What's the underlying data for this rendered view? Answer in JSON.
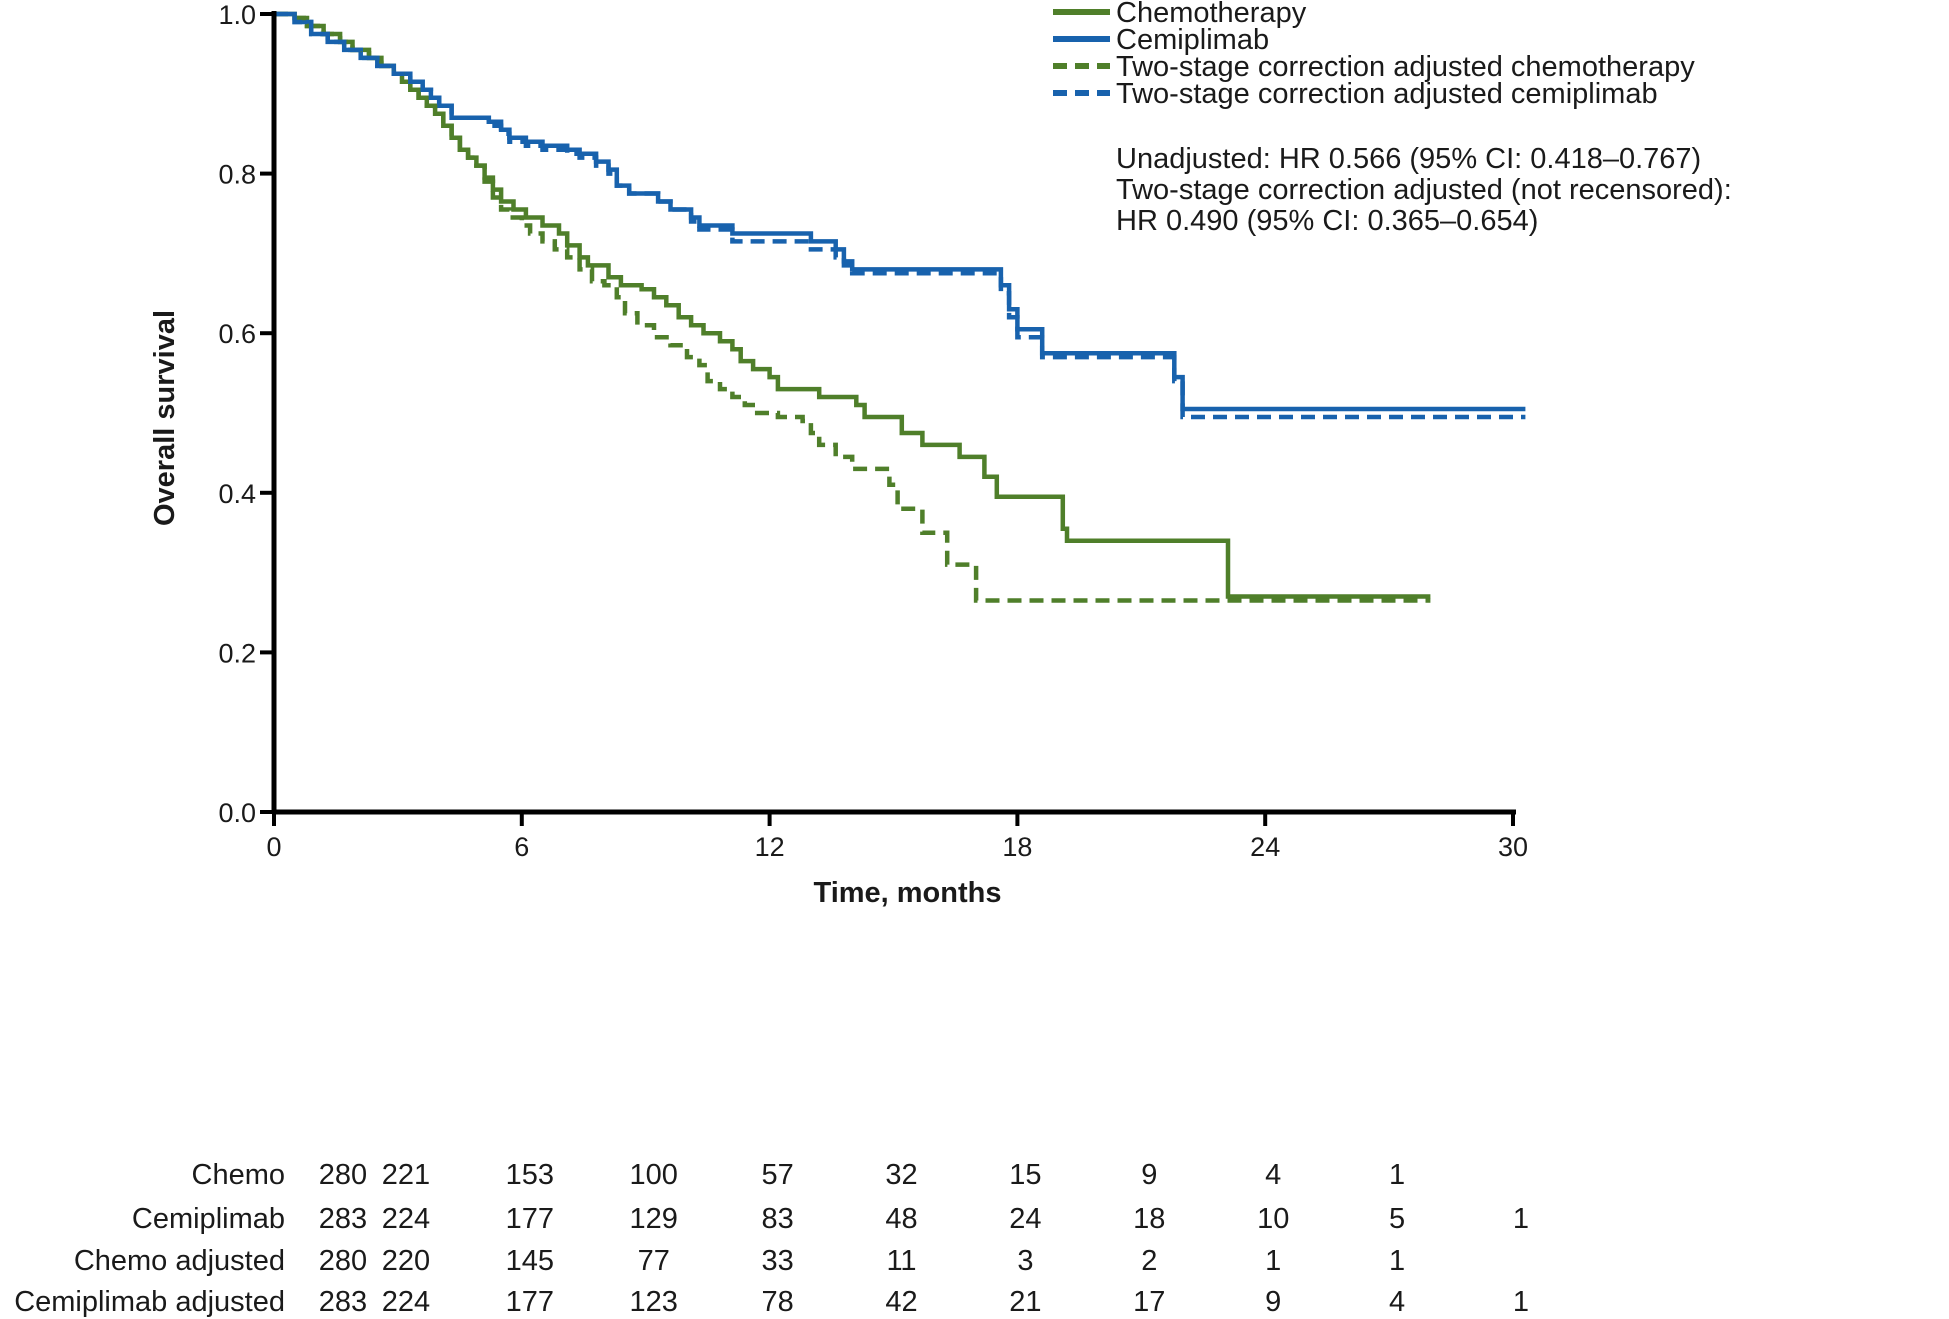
{
  "chart_data": {
    "type": "line",
    "subtype": "kaplan-meier",
    "title": "",
    "xlabel": "Time, months",
    "ylabel": "Overall survival",
    "xlim": [
      0,
      30
    ],
    "ylim": [
      0.0,
      1.0
    ],
    "x_ticks": [
      "0",
      "6",
      "12",
      "18",
      "24",
      "30"
    ],
    "y_ticks": [
      "0.0",
      "0.2",
      "0.4",
      "0.6",
      "0.8",
      "1.0"
    ],
    "legend": {
      "placement": "top-right",
      "entries": [
        {
          "label": "Chemotherapy",
          "color": "#4f7f2a",
          "style": "solid"
        },
        {
          "label": "Cemiplimab",
          "color": "#1862ad",
          "style": "solid"
        },
        {
          "label": "Two-stage correction adjusted chemotherapy",
          "color": "#4f7f2a",
          "style": "dashed"
        },
        {
          "label": "Two-stage correction adjusted cemiplimab",
          "color": "#1862ad",
          "style": "dashed"
        }
      ]
    },
    "annotations": [
      "Unadjusted: HR 0.566 (95% CI: 0.418–0.767)",
      "Two-stage correction adjusted (not recensored):",
      "HR 0.490 (95% CI: 0.365–0.654)"
    ],
    "series": [
      {
        "name": "Chemotherapy",
        "color": "#4f7f2a",
        "dash": false,
        "steps": [
          [
            0,
            1.0
          ],
          [
            0.5,
            0.995
          ],
          [
            0.8,
            0.985
          ],
          [
            1.2,
            0.975
          ],
          [
            1.6,
            0.965
          ],
          [
            1.9,
            0.955
          ],
          [
            2.3,
            0.945
          ],
          [
            2.6,
            0.935
          ],
          [
            2.9,
            0.925
          ],
          [
            3.1,
            0.915
          ],
          [
            3.3,
            0.905
          ],
          [
            3.5,
            0.895
          ],
          [
            3.7,
            0.885
          ],
          [
            3.9,
            0.875
          ],
          [
            4.1,
            0.86
          ],
          [
            4.3,
            0.845
          ],
          [
            4.5,
            0.83
          ],
          [
            4.7,
            0.82
          ],
          [
            4.9,
            0.81
          ],
          [
            5.1,
            0.795
          ],
          [
            5.3,
            0.78
          ],
          [
            5.5,
            0.765
          ],
          [
            5.8,
            0.755
          ],
          [
            6.1,
            0.745
          ],
          [
            6.5,
            0.735
          ],
          [
            6.9,
            0.725
          ],
          [
            7.1,
            0.71
          ],
          [
            7.4,
            0.695
          ],
          [
            7.6,
            0.685
          ],
          [
            8.1,
            0.67
          ],
          [
            8.4,
            0.66
          ],
          [
            8.9,
            0.655
          ],
          [
            9.2,
            0.645
          ],
          [
            9.5,
            0.635
          ],
          [
            9.8,
            0.62
          ],
          [
            10.1,
            0.61
          ],
          [
            10.4,
            0.6
          ],
          [
            10.8,
            0.59
          ],
          [
            11.1,
            0.58
          ],
          [
            11.3,
            0.565
          ],
          [
            11.6,
            0.555
          ],
          [
            12.0,
            0.545
          ],
          [
            12.2,
            0.53
          ],
          [
            13.2,
            0.52
          ],
          [
            14.1,
            0.51
          ],
          [
            14.3,
            0.495
          ],
          [
            15.2,
            0.475
          ],
          [
            15.7,
            0.46
          ],
          [
            16.6,
            0.445
          ],
          [
            17.2,
            0.42
          ],
          [
            17.5,
            0.395
          ],
          [
            19.1,
            0.355
          ],
          [
            19.2,
            0.34
          ],
          [
            23.1,
            0.27
          ],
          [
            28.0,
            0.27
          ]
        ]
      },
      {
        "name": "Cemiplimab",
        "color": "#1862ad",
        "dash": false,
        "steps": [
          [
            0,
            1.0
          ],
          [
            0.5,
            0.99
          ],
          [
            0.9,
            0.975
          ],
          [
            1.3,
            0.965
          ],
          [
            1.7,
            0.955
          ],
          [
            2.1,
            0.945
          ],
          [
            2.5,
            0.935
          ],
          [
            2.9,
            0.925
          ],
          [
            3.3,
            0.915
          ],
          [
            3.6,
            0.905
          ],
          [
            3.8,
            0.895
          ],
          [
            4.0,
            0.885
          ],
          [
            4.3,
            0.87
          ],
          [
            5.2,
            0.865
          ],
          [
            5.5,
            0.855
          ],
          [
            5.7,
            0.845
          ],
          [
            6.1,
            0.84
          ],
          [
            6.5,
            0.835
          ],
          [
            7.1,
            0.83
          ],
          [
            7.4,
            0.825
          ],
          [
            7.8,
            0.815
          ],
          [
            8.1,
            0.805
          ],
          [
            8.3,
            0.785
          ],
          [
            8.6,
            0.775
          ],
          [
            9.3,
            0.765
          ],
          [
            9.6,
            0.755
          ],
          [
            10.1,
            0.745
          ],
          [
            10.3,
            0.735
          ],
          [
            11.1,
            0.725
          ],
          [
            13.0,
            0.715
          ],
          [
            13.6,
            0.705
          ],
          [
            13.8,
            0.69
          ],
          [
            14.0,
            0.68
          ],
          [
            17.6,
            0.66
          ],
          [
            17.8,
            0.63
          ],
          [
            18.0,
            0.605
          ],
          [
            18.6,
            0.575
          ],
          [
            21.8,
            0.545
          ],
          [
            22.0,
            0.505
          ],
          [
            30.3,
            0.505
          ]
        ]
      },
      {
        "name": "Two-stage correction adjusted chemotherapy",
        "color": "#4f7f2a",
        "dash": true,
        "steps": [
          [
            0,
            1.0
          ],
          [
            0.5,
            0.995
          ],
          [
            0.8,
            0.985
          ],
          [
            1.2,
            0.975
          ],
          [
            1.6,
            0.965
          ],
          [
            1.9,
            0.955
          ],
          [
            2.3,
            0.945
          ],
          [
            2.6,
            0.935
          ],
          [
            2.9,
            0.925
          ],
          [
            3.1,
            0.915
          ],
          [
            3.3,
            0.905
          ],
          [
            3.5,
            0.895
          ],
          [
            3.7,
            0.885
          ],
          [
            3.9,
            0.875
          ],
          [
            4.1,
            0.86
          ],
          [
            4.3,
            0.845
          ],
          [
            4.5,
            0.83
          ],
          [
            4.7,
            0.82
          ],
          [
            4.9,
            0.81
          ],
          [
            5.1,
            0.79
          ],
          [
            5.3,
            0.77
          ],
          [
            5.5,
            0.755
          ],
          [
            5.7,
            0.745
          ],
          [
            6.0,
            0.735
          ],
          [
            6.2,
            0.725
          ],
          [
            6.5,
            0.715
          ],
          [
            6.8,
            0.705
          ],
          [
            7.1,
            0.695
          ],
          [
            7.4,
            0.68
          ],
          [
            7.7,
            0.665
          ],
          [
            8.0,
            0.66
          ],
          [
            8.3,
            0.645
          ],
          [
            8.5,
            0.625
          ],
          [
            8.8,
            0.61
          ],
          [
            9.2,
            0.595
          ],
          [
            9.6,
            0.585
          ],
          [
            10.0,
            0.57
          ],
          [
            10.3,
            0.56
          ],
          [
            10.5,
            0.54
          ],
          [
            10.8,
            0.53
          ],
          [
            11.1,
            0.52
          ],
          [
            11.4,
            0.51
          ],
          [
            11.7,
            0.5
          ],
          [
            12.2,
            0.495
          ],
          [
            12.8,
            0.49
          ],
          [
            13.0,
            0.475
          ],
          [
            13.2,
            0.46
          ],
          [
            13.6,
            0.445
          ],
          [
            14.0,
            0.43
          ],
          [
            14.9,
            0.41
          ],
          [
            15.1,
            0.38
          ],
          [
            15.7,
            0.35
          ],
          [
            16.3,
            0.31
          ],
          [
            17.0,
            0.265
          ],
          [
            28.0,
            0.265
          ]
        ]
      },
      {
        "name": "Two-stage correction adjusted cemiplimab",
        "color": "#1862ad",
        "dash": true,
        "steps": [
          [
            0,
            1.0
          ],
          [
            0.5,
            0.99
          ],
          [
            0.9,
            0.975
          ],
          [
            1.3,
            0.965
          ],
          [
            1.7,
            0.955
          ],
          [
            2.1,
            0.945
          ],
          [
            2.5,
            0.935
          ],
          [
            2.9,
            0.925
          ],
          [
            3.3,
            0.915
          ],
          [
            3.6,
            0.905
          ],
          [
            3.8,
            0.895
          ],
          [
            4.0,
            0.885
          ],
          [
            4.3,
            0.87
          ],
          [
            5.2,
            0.86
          ],
          [
            5.5,
            0.85
          ],
          [
            5.7,
            0.84
          ],
          [
            6.1,
            0.835
          ],
          [
            6.5,
            0.83
          ],
          [
            7.1,
            0.825
          ],
          [
            7.4,
            0.82
          ],
          [
            7.8,
            0.81
          ],
          [
            8.1,
            0.8
          ],
          [
            8.3,
            0.785
          ],
          [
            8.6,
            0.775
          ],
          [
            9.3,
            0.765
          ],
          [
            9.6,
            0.755
          ],
          [
            10.1,
            0.74
          ],
          [
            10.3,
            0.73
          ],
          [
            11.1,
            0.715
          ],
          [
            13.0,
            0.705
          ],
          [
            13.6,
            0.695
          ],
          [
            13.8,
            0.685
          ],
          [
            14.0,
            0.675
          ],
          [
            17.6,
            0.65
          ],
          [
            17.8,
            0.62
          ],
          [
            18.0,
            0.595
          ],
          [
            18.6,
            0.57
          ],
          [
            21.8,
            0.54
          ],
          [
            22.0,
            0.495
          ],
          [
            30.3,
            0.495
          ]
        ]
      }
    ],
    "risk_table": {
      "times": [
        0,
        3,
        6,
        9,
        12,
        15,
        18,
        21,
        24,
        27,
        30
      ],
      "rows": [
        {
          "label": "Chemo",
          "values": [
            "280",
            "221",
            "153",
            "100",
            "57",
            "32",
            "15",
            "9",
            "4",
            "1",
            ""
          ]
        },
        {
          "label": "Cemiplimab",
          "values": [
            "283",
            "224",
            "177",
            "129",
            "83",
            "48",
            "24",
            "18",
            "10",
            "5",
            "1"
          ]
        },
        {
          "label": "Chemo adjusted",
          "values": [
            "280",
            "220",
            "145",
            "77",
            "33",
            "11",
            "3",
            "2",
            "1",
            "1",
            ""
          ]
        },
        {
          "label": "Cemiplimab adjusted",
          "values": [
            "283",
            "224",
            "177",
            "123",
            "78",
            "42",
            "21",
            "17",
            "9",
            "4",
            "1"
          ]
        }
      ]
    }
  }
}
